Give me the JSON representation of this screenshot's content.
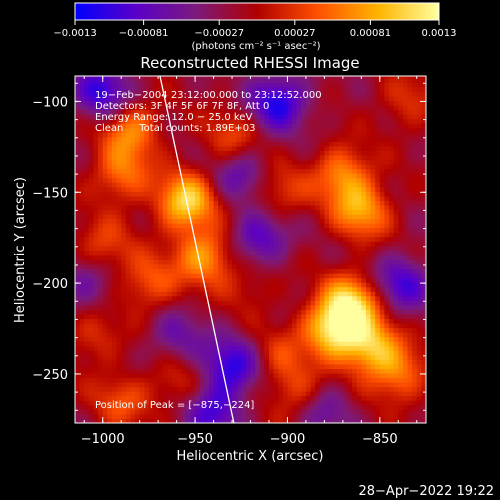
{
  "chart_data": {
    "type": "heatmap",
    "title": "Reconstructed RHESSI Image",
    "xlabel": "Heliocentric X (arcsec)",
    "ylabel": "Heliocentric Y (arcsec)",
    "xlim": [
      -1015,
      -825
    ],
    "ylim": [
      -277,
      -86
    ],
    "x_ticks": [
      -1000,
      -950,
      -900,
      -850
    ],
    "x_tick_labels": [
      "−1000",
      "−950",
      "−900",
      "−850"
    ],
    "y_ticks": [
      -100,
      -150,
      -200,
      -250
    ],
    "y_tick_labels": [
      "−100",
      "−150",
      "−200",
      "−250"
    ],
    "annotations": [
      "19−Feb−2004 23:12:00.000 to 23:12:52.000",
      "Detectors: 3F 4F 5F 6F 7F 8F, Att 0",
      "Energy Range: 12.0 − 25.0 keV",
      "Clean     Total counts: 1.89E+03"
    ],
    "peak_label": "Position of Peak = [−875,−224]",
    "peak": [
      -875,
      -224
    ],
    "limb_line": [
      [
        -969,
        -86
      ],
      [
        -929,
        -277
      ]
    ],
    "colorbar": {
      "range": [
        -0.0013,
        0.0013
      ],
      "ticks": [
        -0.0013,
        -0.00081,
        -0.00027,
        0.00027,
        0.00081,
        0.0013
      ],
      "tick_labels": [
        "−0.0013",
        "−0.00081",
        "−0.00027",
        "0.00027",
        "0.00081",
        "0.0013"
      ],
      "label": "(photons cm⁻² s⁻¹ asec⁻²)",
      "colors": [
        "#0000ff",
        "#5a00c8",
        "#7c1a7c",
        "#b00000",
        "#ff5000",
        "#ffb400",
        "#ffffa0"
      ]
    },
    "bright_regions": [
      {
        "x": -955,
        "y": -155,
        "v": 0.0012
      },
      {
        "x": -945,
        "y": -185,
        "v": 0.0009
      },
      {
        "x": -985,
        "y": -115,
        "v": 0.0008
      },
      {
        "x": -990,
        "y": -140,
        "v": 0.0007
      },
      {
        "x": -975,
        "y": -200,
        "v": 0.0006
      },
      {
        "x": -870,
        "y": -140,
        "v": 0.0008
      },
      {
        "x": -860,
        "y": -160,
        "v": 0.0009
      },
      {
        "x": -865,
        "y": -210,
        "v": 0.0011
      },
      {
        "x": -875,
        "y": -225,
        "v": 0.0013
      },
      {
        "x": -855,
        "y": -235,
        "v": 0.001
      },
      {
        "x": -840,
        "y": -250,
        "v": 0.0007
      },
      {
        "x": -930,
        "y": -120,
        "v": 0.0005
      },
      {
        "x": -905,
        "y": -150,
        "v": 0.0005
      },
      {
        "x": -1000,
        "y": -180,
        "v": 0.0005
      },
      {
        "x": -1005,
        "y": -230,
        "v": 0.0004
      },
      {
        "x": -960,
        "y": -255,
        "v": 0.0004
      },
      {
        "x": -895,
        "y": -260,
        "v": 0.0005
      },
      {
        "x": -905,
        "y": -240,
        "v": 0.0004
      },
      {
        "x": -835,
        "y": -100,
        "v": 0.0004
      },
      {
        "x": -920,
        "y": -200,
        "v": 0.0003
      },
      {
        "x": -990,
        "y": -265,
        "v": 0.0005
      }
    ],
    "dark_regions": [
      {
        "x": -905,
        "y": -100,
        "v": -0.001
      },
      {
        "x": -1000,
        "y": -95,
        "v": -0.0009
      },
      {
        "x": -915,
        "y": -175,
        "v": -0.0008
      },
      {
        "x": -930,
        "y": -245,
        "v": -0.0009
      },
      {
        "x": -940,
        "y": -270,
        "v": -0.0008
      },
      {
        "x": -838,
        "y": -200,
        "v": -0.0008
      },
      {
        "x": -925,
        "y": -140,
        "v": -0.0006
      },
      {
        "x": -1010,
        "y": -200,
        "v": -0.0005
      },
      {
        "x": -880,
        "y": -270,
        "v": -0.0005
      },
      {
        "x": -960,
        "y": -230,
        "v": -0.0005
      }
    ]
  },
  "footer": {
    "date": "28−Apr−2022 19:22"
  }
}
